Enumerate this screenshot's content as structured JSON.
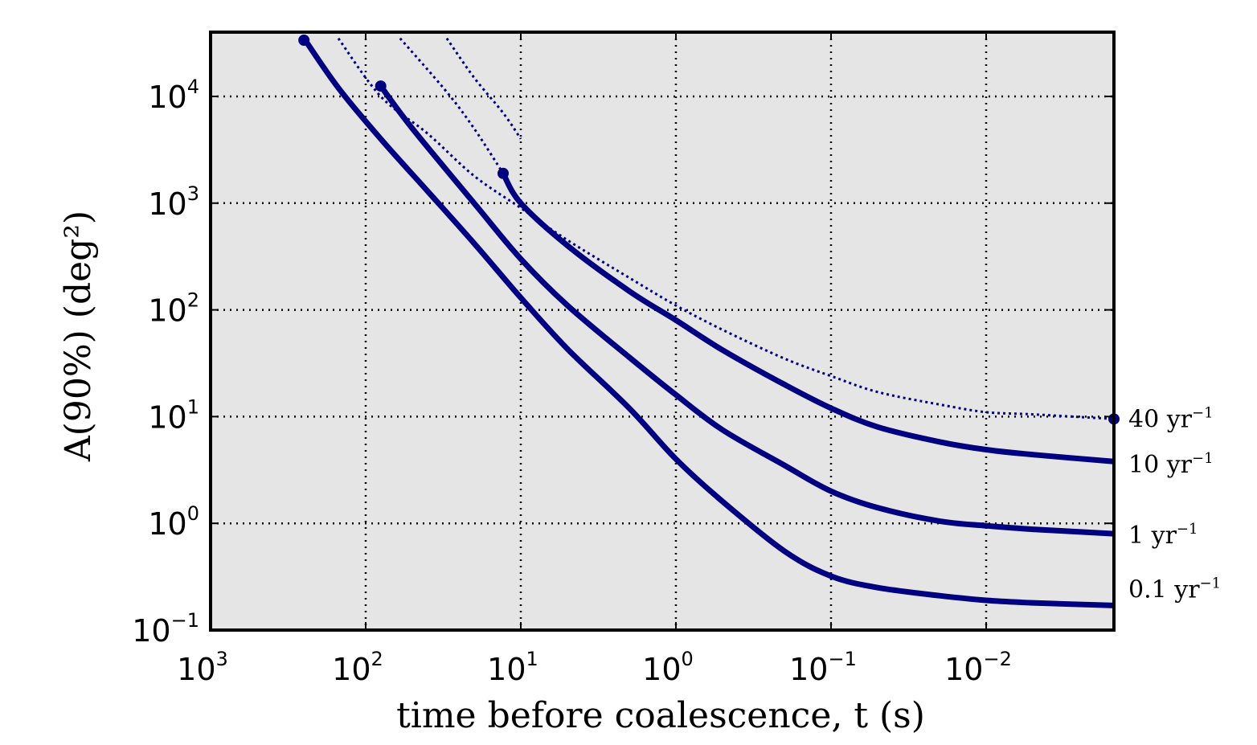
{
  "chart_data": {
    "type": "line",
    "title": "",
    "xlabel": "time before coalescence, t (s)",
    "ylabel": "A(90%) (deg²)",
    "x_scale": "log",
    "y_scale": "log",
    "x_reversed": true,
    "xlim": [
      1000,
      0.0015
    ],
    "ylim": [
      0.1,
      40000
    ],
    "grid": true,
    "x_ticks": [
      {
        "base": "10",
        "exp": "3",
        "value": 1000
      },
      {
        "base": "10",
        "exp": "2",
        "value": 100
      },
      {
        "base": "10",
        "exp": "1",
        "value": 10
      },
      {
        "base": "10",
        "exp": "0",
        "value": 1
      },
      {
        "base": "10",
        "exp": "−1",
        "value": 0.1
      },
      {
        "base": "10",
        "exp": "−2",
        "value": 0.01
      }
    ],
    "y_ticks": [
      {
        "base": "10",
        "exp": "4",
        "value": 10000
      },
      {
        "base": "10",
        "exp": "3",
        "value": 1000
      },
      {
        "base": "10",
        "exp": "2",
        "value": 100
      },
      {
        "base": "10",
        "exp": "1",
        "value": 10
      },
      {
        "base": "10",
        "exp": "0",
        "value": 1
      },
      {
        "base": "10",
        "exp": "−1",
        "value": 0.1
      }
    ],
    "series": [
      {
        "label_base": "0.1 yr",
        "label_exp": "−1",
        "style": "solid",
        "color": "#000080",
        "x": [
          250,
          150,
          80,
          40,
          20,
          10,
          5,
          2,
          1,
          0.5,
          0.2,
          0.1,
          0.05,
          0.02,
          0.01,
          0.005,
          0.0015
        ],
        "y": [
          35000,
          12000,
          4000,
          1300,
          420,
          130,
          43,
          12,
          4,
          1.6,
          0.55,
          0.32,
          0.25,
          0.21,
          0.19,
          0.18,
          0.17
        ]
      },
      {
        "label_base": "1 yr",
        "label_exp": "−1",
        "style": "solid",
        "color": "#000080",
        "x": [
          80,
          50,
          20,
          10,
          5,
          2,
          1,
          0.5,
          0.2,
          0.1,
          0.05,
          0.02,
          0.01,
          0.005,
          0.0015
        ],
        "y": [
          12500,
          5000,
          1000,
          300,
          110,
          36,
          16,
          7.5,
          3.5,
          2,
          1.4,
          1.05,
          0.95,
          0.88,
          0.8
        ],
        "start_marker": true
      },
      {
        "label_base": "10 yr",
        "label_exp": "−1",
        "style": "solid",
        "color": "#000080",
        "x": [
          13,
          10,
          5,
          2,
          1,
          0.5,
          0.2,
          0.1,
          0.05,
          0.02,
          0.01,
          0.005,
          0.0015
        ],
        "y": [
          1900,
          1000,
          400,
          150,
          80,
          42,
          20,
          12,
          8,
          5.8,
          4.9,
          4.4,
          3.8
        ],
        "start_marker": true
      },
      {
        "label_base": "40 yr",
        "label_exp": "−1",
        "style": "dotted",
        "color": "#000080",
        "x": [
          150,
          80,
          40,
          20,
          10,
          5,
          2,
          1,
          0.5,
          0.2,
          0.1,
          0.05,
          0.02,
          0.01,
          0.005,
          0.0015
        ],
        "y": [
          35000,
          10000,
          4500,
          1800,
          900,
          450,
          200,
          110,
          65,
          35,
          24,
          17,
          13,
          11,
          10.5,
          9.5
        ],
        "end_marker": true
      },
      {
        "label_base": "",
        "label_exp": "",
        "style": "dotted",
        "color": "#000080",
        "x": [
          60,
          30,
          20,
          13
        ],
        "y": [
          35000,
          11000,
          5000,
          1900
        ]
      },
      {
        "label_base": "",
        "label_exp": "",
        "style": "dotted",
        "color": "#000080",
        "x": [
          30,
          20,
          13,
          10
        ],
        "y": [
          35000,
          15000,
          7000,
          4000
        ]
      }
    ]
  }
}
